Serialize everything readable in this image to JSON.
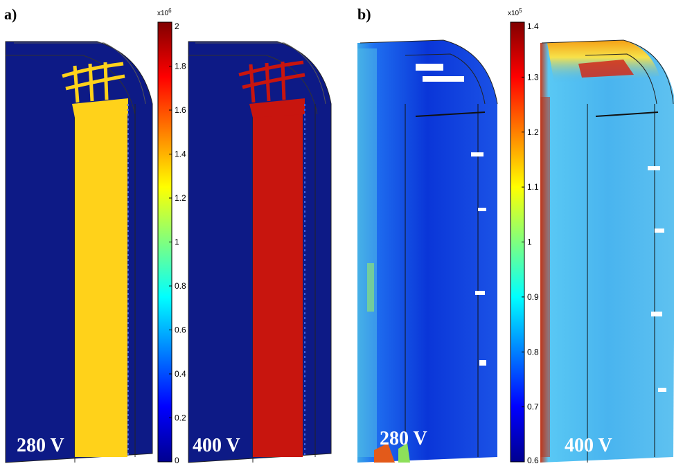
{
  "chart_data": [
    {
      "type": "heatmap",
      "panel_label": "a)",
      "colorbar": {
        "multiplier": "x10",
        "exponent": "6",
        "range": [
          0,
          2
        ],
        "ticks": [
          "0",
          "0.2",
          "0.4",
          "0.6",
          "0.8",
          "1",
          "1.2",
          "1.4",
          "1.6",
          "1.8",
          "2"
        ]
      },
      "views": [
        {
          "voltage_label": "280 V",
          "strip_value": 1.3,
          "strip_color": "#ffd21a"
        },
        {
          "voltage_label": "400 V",
          "strip_value": 1.85,
          "strip_color": "#c8150e"
        }
      ]
    },
    {
      "type": "heatmap",
      "panel_label": "b)",
      "colorbar": {
        "multiplier": "x10",
        "exponent": "5",
        "range": [
          0.6,
          1.4
        ],
        "ticks": [
          "0.6",
          "0.7",
          "0.8",
          "0.9",
          "1",
          "1.1",
          "1.2",
          "1.3",
          "1.4"
        ]
      },
      "views": [
        {
          "voltage_label": "280 V",
          "field_value": 0.72,
          "field_color": "#0a3ad8"
        },
        {
          "voltage_label": "400 V",
          "field_value": 0.95,
          "field_color": "#3fb0f2"
        }
      ]
    }
  ]
}
